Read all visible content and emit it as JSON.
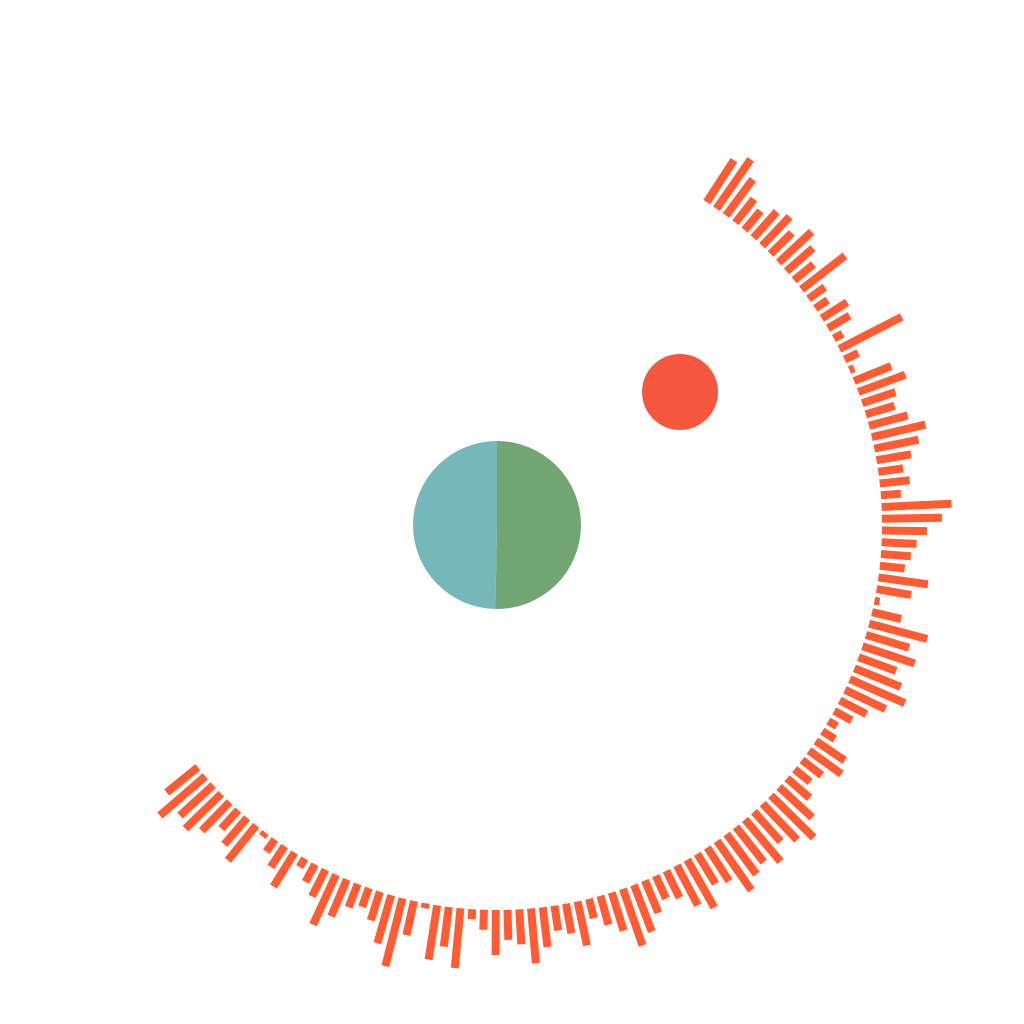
{
  "visualizer": {
    "bars": {
      "color": "#ff5c33",
      "values": [
        50,
        60,
        45,
        30,
        25,
        35,
        40,
        30,
        45,
        35,
        25,
        55,
        20,
        15,
        30,
        25,
        10,
        70,
        15,
        5,
        40,
        50,
        35,
        30,
        40,
        55,
        45,
        35,
        25,
        30,
        20,
        70,
        60,
        45,
        35,
        30,
        25,
        50,
        35,
        5,
        30,
        60,
        45,
        55,
        40,
        50,
        60,
        45,
        30,
        20,
        10,
        15,
        35,
        40,
        25,
        20,
        30,
        45,
        60,
        50,
        40,
        55,
        45,
        50,
        60,
        40,
        35,
        55,
        45,
        30,
        25,
        35,
        50,
        60,
        40,
        30,
        20,
        45,
        30,
        25,
        40,
        55,
        35,
        30,
        45,
        20,
        10,
        60,
        40,
        55,
        5,
        35,
        70,
        50,
        30,
        20,
        25,
        40,
        55,
        30,
        20,
        10,
        40,
        25,
        15,
        5,
        45,
        35,
        25,
        40,
        50,
        45,
        60,
        40
      ]
    },
    "pie": {
      "values": [
        50.3,
        49.7
      ],
      "colors": [
        "#72a574",
        "#74b8bb"
      ]
    },
    "dot": {
      "color": "#f4573e"
    }
  }
}
